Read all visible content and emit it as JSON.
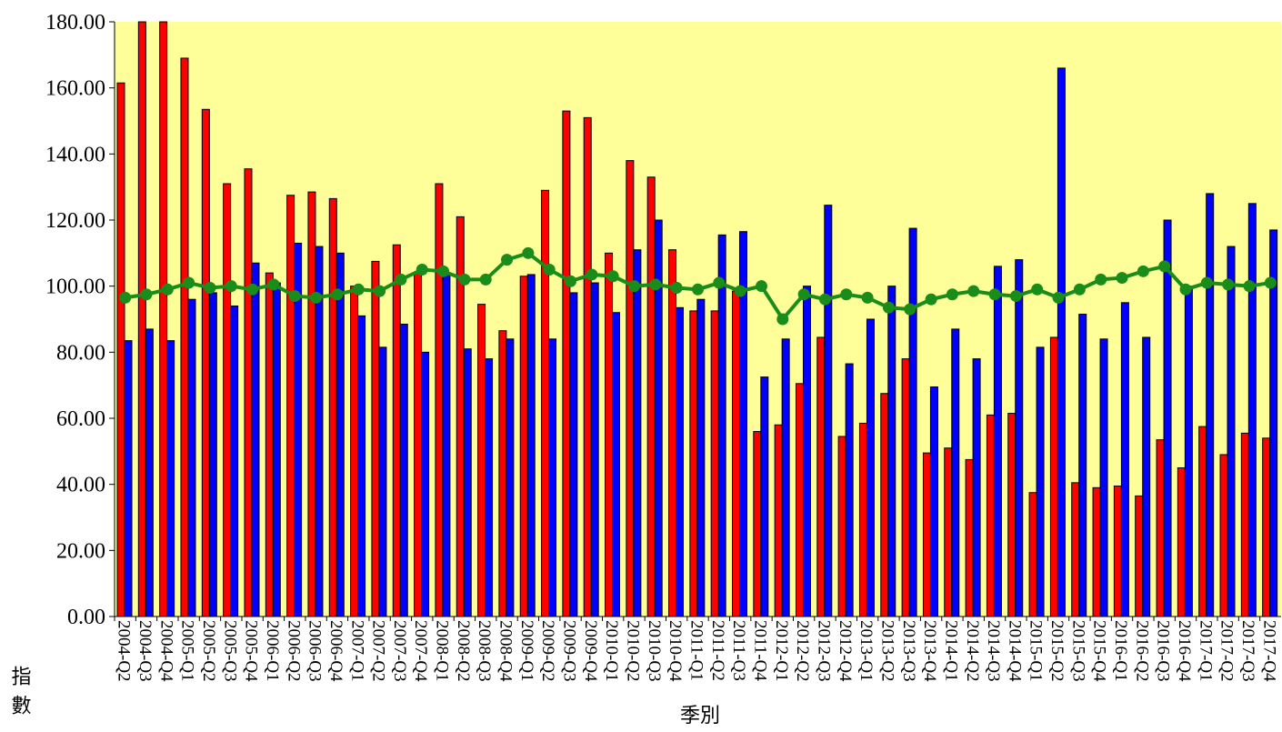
{
  "chart_data": {
    "type": "bar-line",
    "x_label": "季別",
    "y_label": "指數",
    "categories": [
      "2004-Q2",
      "2004-Q3",
      "2004-Q4",
      "2005-Q1",
      "2005-Q2",
      "2005-Q3",
      "2005-Q4",
      "2006-Q1",
      "2006-Q2",
      "2006-Q3",
      "2006-Q4",
      "2007-Q1",
      "2007-Q2",
      "2007-Q3",
      "2007-Q4",
      "2008-Q1",
      "2008-Q2",
      "2008-Q3",
      "2008-Q4",
      "2009-Q1",
      "2009-Q2",
      "2009-Q3",
      "2009-Q4",
      "2010-Q1",
      "2010-Q2",
      "2010-Q3",
      "2010-Q4",
      "2011-Q1",
      "2011-Q2",
      "2011-Q3",
      "2011-Q4",
      "2012-Q1",
      "2012-Q2",
      "2012-Q3",
      "2012-Q4",
      "2013-Q1",
      "2013-Q2",
      "2013-Q3",
      "2013-Q4",
      "2014-Q1",
      "2014-Q2",
      "2014-Q3",
      "2014-Q4",
      "2015-Q1",
      "2015-Q2",
      "2015-Q3",
      "2015-Q4",
      "2016-Q1",
      "2016-Q2",
      "2016-Q3",
      "2016-Q4",
      "2017-Q1",
      "2017-Q2",
      "2017-Q3",
      "2017-Q4"
    ],
    "series": [
      {
        "type": "bar",
        "color": "#ff0000",
        "values": [
          161.5,
          180,
          180,
          169,
          153.5,
          131,
          135.5,
          104,
          127.5,
          128.5,
          126.5,
          100,
          107.5,
          112.5,
          104,
          131,
          121,
          94.5,
          86.5,
          103,
          129,
          153,
          151,
          110,
          138,
          133,
          111,
          92.5,
          92.5,
          98.5,
          56,
          58,
          70.5,
          84.5,
          54.5,
          58.5,
          67.5,
          78,
          49.5,
          51,
          47.5,
          61,
          61.5,
          37.5,
          84.5,
          40.5,
          39,
          39.5,
          36.5,
          53.5,
          45,
          57.5,
          49,
          55.5,
          54
        ]
      },
      {
        "type": "bar",
        "color": "#0000ff",
        "values": [
          83.5,
          87,
          83.5,
          96,
          98,
          94,
          107,
          101,
          113,
          112,
          110,
          91,
          81.5,
          88.5,
          80,
          104,
          81,
          78,
          84,
          103.5,
          84,
          98,
          101,
          92,
          111,
          120,
          93.5,
          96,
          115.5,
          116.5,
          72.5,
          84,
          100,
          124.5,
          76.5,
          90,
          100,
          117.5,
          69.5,
          87,
          78,
          106,
          108,
          81.5,
          166,
          91.5,
          84,
          95,
          84.5,
          120,
          100,
          128,
          112,
          125,
          117
        ]
      },
      {
        "type": "line",
        "color": "#1a8c1a",
        "values": [
          96.5,
          97.5,
          99,
          101,
          99.5,
          100,
          99,
          100.5,
          97,
          96.5,
          97.5,
          99,
          98.5,
          102,
          105,
          104.5,
          102,
          102,
          108,
          110,
          105,
          101.5,
          103.5,
          103,
          100,
          100.5,
          99.5,
          99,
          101,
          98.5,
          100,
          90,
          97.5,
          96,
          97.5,
          96.5,
          93.5,
          93,
          96,
          97.5,
          98.5,
          97.5,
          97,
          99,
          96.5,
          99,
          102,
          102.5,
          104.5,
          106,
          99,
          101,
          100.5,
          100,
          101
        ]
      }
    ],
    "ylim": [
      0,
      180
    ],
    "yticks": [
      {
        "value": 0,
        "label": "0.00"
      },
      {
        "value": 20,
        "label": "20.00"
      },
      {
        "value": 40,
        "label": "40.00"
      },
      {
        "value": 60,
        "label": "60.00"
      },
      {
        "value": 80,
        "label": "80.00"
      },
      {
        "value": 100,
        "label": "100.00"
      },
      {
        "value": 120,
        "label": "120.00"
      },
      {
        "value": 140,
        "label": "140.00"
      },
      {
        "value": 160,
        "label": "160.00"
      },
      {
        "value": 180,
        "label": "180.00"
      }
    ],
    "plot_background": "#ffff99"
  }
}
